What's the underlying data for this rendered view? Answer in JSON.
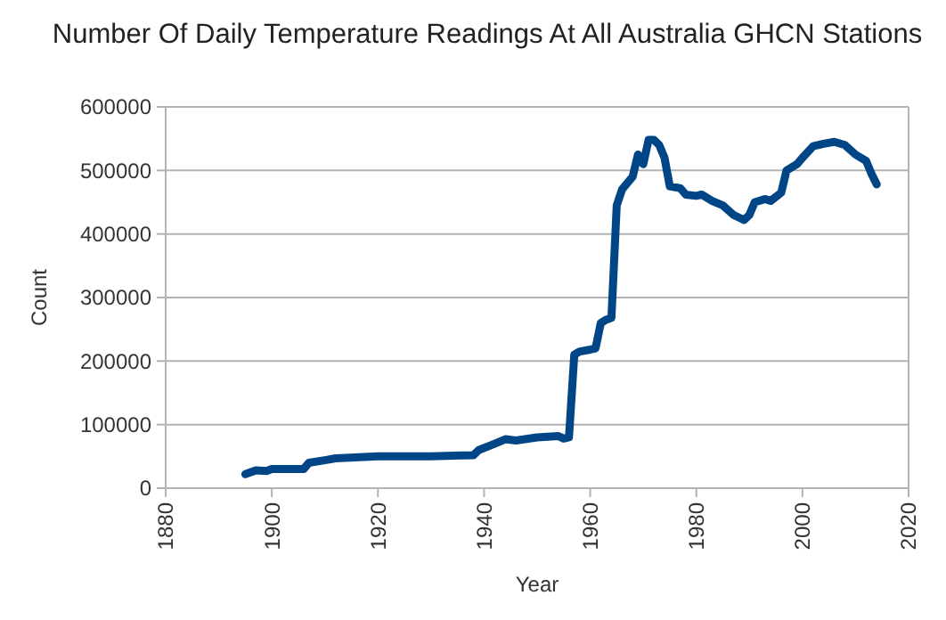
{
  "chart_data": {
    "type": "line",
    "title": "Number Of Daily Temperature Readings At All Australia GHCN Stations",
    "xlabel": "Year",
    "ylabel": "Count",
    "x": [
      1895,
      1897,
      1899,
      1900,
      1906,
      1907,
      1910,
      1912,
      1920,
      1930,
      1938,
      1939,
      1942,
      1944,
      1946,
      1950,
      1954,
      1955,
      1956,
      1957,
      1958,
      1960,
      1961,
      1962,
      1963,
      1964,
      1965,
      1966,
      1968,
      1969,
      1970,
      1971,
      1972,
      1973,
      1974,
      1975,
      1977,
      1978,
      1980,
      1981,
      1983,
      1985,
      1987,
      1989,
      1990,
      1991,
      1993,
      1994,
      1996,
      1997,
      1999,
      2000,
      2002,
      2004,
      2006,
      2008,
      2010,
      2012,
      2013,
      2014
    ],
    "series": [
      {
        "color": "#004586",
        "values": [
          22000,
          28000,
          27000,
          30000,
          30000,
          40000,
          44000,
          47000,
          50000,
          50000,
          52000,
          60000,
          70000,
          77000,
          75000,
          80000,
          82000,
          78000,
          80000,
          210000,
          215000,
          218000,
          220000,
          260000,
          265000,
          268000,
          445000,
          470000,
          490000,
          525000,
          510000,
          548000,
          548000,
          540000,
          520000,
          475000,
          472000,
          462000,
          460000,
          462000,
          452000,
          445000,
          430000,
          422000,
          430000,
          450000,
          455000,
          452000,
          465000,
          500000,
          510000,
          520000,
          538000,
          542000,
          545000,
          540000,
          525000,
          515000,
          495000,
          478000
        ]
      }
    ],
    "xlim": [
      1880,
      2020
    ],
    "xticks": [
      1880,
      1900,
      1920,
      1940,
      1960,
      1980,
      2000,
      2020
    ],
    "ylim": [
      0,
      600000
    ],
    "yticks": [
      0,
      100000,
      200000,
      300000,
      400000,
      500000,
      600000
    ],
    "grid": "y",
    "marker": "none",
    "line_style": "solid"
  }
}
